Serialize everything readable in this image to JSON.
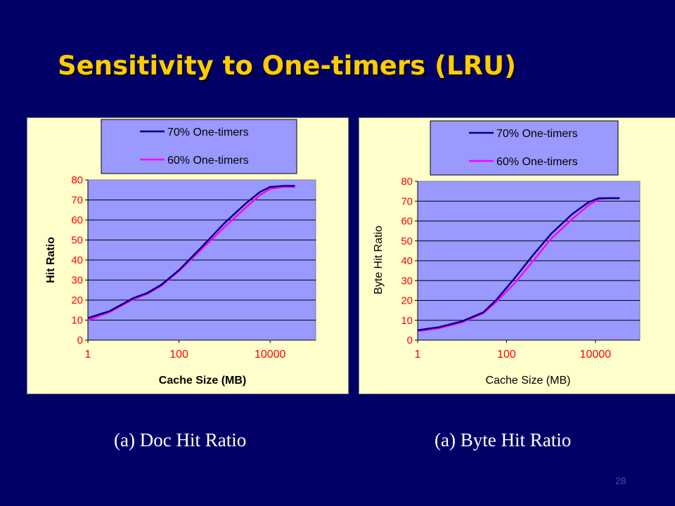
{
  "slide": {
    "title": "Sensitivity to One-timers (LRU)",
    "page_number": "28",
    "captions": [
      "(a) Doc Hit Ratio",
      "(a) Byte Hit Ratio"
    ]
  },
  "colors": {
    "background": "#000066",
    "title": "#FFCC00",
    "chart_area": "#FFFFCC",
    "plot_area": "#9999FF",
    "axis_text": "#FF0000",
    "series_70": "#000080",
    "series_60": "#FF00FF"
  },
  "chart_data": [
    {
      "type": "line",
      "title": "",
      "xlabel": "Cache Size (MB)",
      "ylabel": "Hit Ratio",
      "x_scale": "log",
      "xlim": [
        1,
        100000
      ],
      "ylim": [
        0,
        80
      ],
      "x_ticks": [
        1,
        100,
        10000
      ],
      "x_tick_labels": [
        "1",
        "100",
        "10000"
      ],
      "y_ticks": [
        0,
        10,
        20,
        30,
        40,
        50,
        60,
        70,
        80
      ],
      "y_tick_labels": [
        "0",
        "10",
        "20",
        "30",
        "40",
        "50",
        "60",
        "70",
        "80"
      ],
      "grid": true,
      "legend": "top",
      "series": [
        {
          "name": "70% One-timers",
          "x": [
            1,
            3,
            10,
            20,
            40,
            100,
            300,
            1000,
            3000,
            6000,
            10000,
            20000,
            35000
          ],
          "values": [
            11,
            14.5,
            21,
            23.5,
            27.5,
            35,
            46,
            58.5,
            68.5,
            74,
            76.5,
            77,
            77
          ]
        },
        {
          "name": "60% One-timers",
          "x": [
            1,
            3,
            10,
            20,
            40,
            100,
            300,
            1000,
            3000,
            6000,
            10000,
            20000,
            35000
          ],
          "values": [
            10,
            14,
            20.5,
            23,
            27,
            34.5,
            45,
            56.5,
            66.5,
            72.5,
            75.5,
            76.5,
            76.5
          ]
        }
      ]
    },
    {
      "type": "line",
      "title": "",
      "xlabel": "Cache Size (MB)",
      "ylabel": "Byte Hit Ratio",
      "x_scale": "log",
      "xlim": [
        1,
        100000
      ],
      "ylim": [
        0,
        80
      ],
      "x_ticks": [
        1,
        100,
        10000
      ],
      "x_tick_labels": [
        "1",
        "100",
        "10000"
      ],
      "y_ticks": [
        0,
        10,
        20,
        30,
        40,
        50,
        60,
        70,
        80
      ],
      "y_tick_labels": [
        "0",
        "10",
        "20",
        "30",
        "40",
        "50",
        "60",
        "70",
        "80"
      ],
      "grid": true,
      "legend": "top",
      "series": [
        {
          "name": "70% One-timers",
          "x": [
            1,
            3,
            10,
            30,
            60,
            150,
            400,
            1000,
            3000,
            7000,
            12000,
            20000,
            35000
          ],
          "values": [
            5,
            6.5,
            9.5,
            14,
            20.5,
            31,
            43,
            53.5,
            63.5,
            69.5,
            71.5,
            71.5,
            71.5
          ]
        },
        {
          "name": "60% One-timers",
          "x": [
            1,
            3,
            10,
            30,
            60,
            150,
            400,
            1000,
            3000,
            7000,
            12000,
            20000,
            35000
          ],
          "values": [
            4.5,
            6,
            9,
            13.5,
            19.5,
            28.5,
            40,
            51,
            61,
            68,
            71,
            71.5,
            71.5
          ]
        }
      ]
    }
  ]
}
